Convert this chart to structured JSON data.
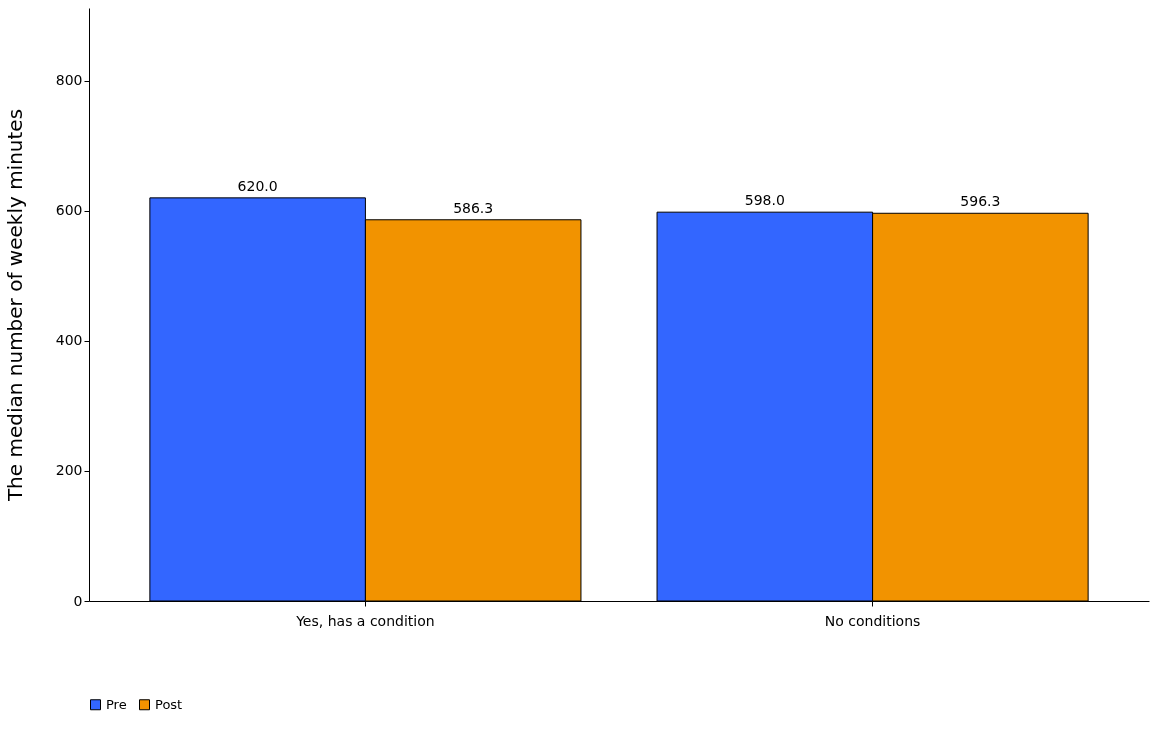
{
  "chart_data": {
    "type": "bar",
    "ylabel": "The median number of weekly minutes",
    "categories": [
      "Yes, has a condition",
      "No conditions"
    ],
    "series": [
      {
        "name": "Pre",
        "color": "#3366ff",
        "values": [
          620.0,
          598.0
        ],
        "value_labels": [
          "620.0",
          "598.0"
        ]
      },
      {
        "name": "Post",
        "color": "#f29300",
        "values": [
          586.3,
          596.3
        ],
        "value_labels": [
          "586.3",
          "596.3"
        ]
      }
    ],
    "ylim": [
      0,
      912
    ],
    "yticks": [
      0,
      200,
      400,
      600,
      800
    ],
    "grid": false,
    "legend": "bottom"
  }
}
